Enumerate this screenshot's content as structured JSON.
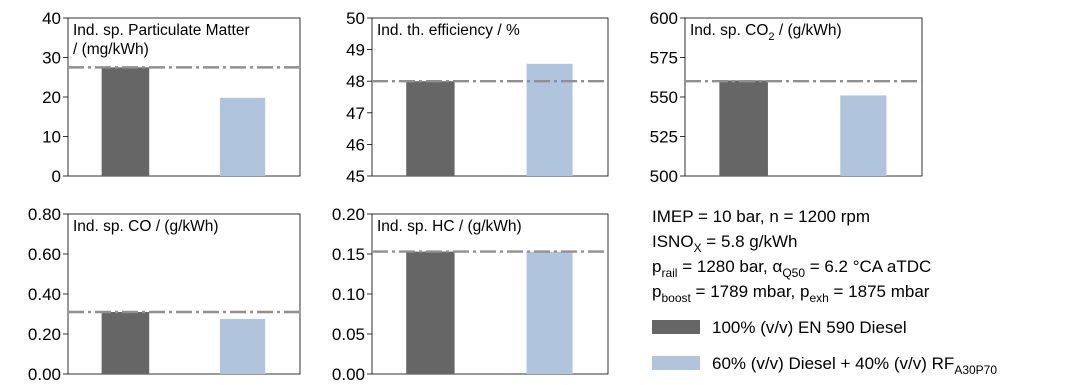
{
  "colors": {
    "diesel": "#666666",
    "blend": "#b0c4de",
    "reference_line": "#909090",
    "axis": "#000000"
  },
  "chart_data": [
    {
      "type": "bar",
      "title": "Ind. sp. Particulate Matter",
      "title_line2": "/ (mg/kWh)",
      "ylim": [
        0,
        40
      ],
      "yticks": [
        "0",
        "10",
        "20",
        "30",
        "40"
      ],
      "series": [
        {
          "ref": "legend.items.0",
          "value": 27.5
        },
        {
          "ref": "legend.items.1",
          "value": 19.8
        }
      ],
      "reference_value": 27.5
    },
    {
      "type": "bar",
      "title": "Ind. th. efficiency / %",
      "ylim": [
        45,
        50
      ],
      "yticks": [
        "45",
        "46",
        "47",
        "48",
        "49",
        "50"
      ],
      "series": [
        {
          "ref": "legend.items.0",
          "value": 48.0
        },
        {
          "ref": "legend.items.1",
          "value": 48.55
        }
      ],
      "reference_value": 48.0
    },
    {
      "type": "bar",
      "title_main": "Ind. sp. CO",
      "title_sub": "2",
      "title_rest": " / (g/kWh)",
      "ylim": [
        500,
        600
      ],
      "yticks": [
        "500",
        "525",
        "550",
        "575",
        "600"
      ],
      "series": [
        {
          "ref": "legend.items.0",
          "value": 560.5
        },
        {
          "ref": "legend.items.1",
          "value": 551.0
        }
      ],
      "reference_value": 560.0
    },
    {
      "type": "bar",
      "title": "Ind. sp. CO / (g/kWh)",
      "ylim": [
        0,
        0.8
      ],
      "yticks": [
        "0.00",
        "0.20",
        "0.40",
        "0.60",
        "0.80"
      ],
      "series": [
        {
          "ref": "legend.items.0",
          "value": 0.31
        },
        {
          "ref": "legend.items.1",
          "value": 0.275
        }
      ],
      "reference_value": 0.31
    },
    {
      "type": "bar",
      "title": "Ind. sp. HC / (g/kWh)",
      "ylim": [
        0,
        0.2
      ],
      "yticks": [
        "0.00",
        "0.05",
        "0.10",
        "0.15",
        "0.20"
      ],
      "series": [
        {
          "ref": "legend.items.0",
          "value": 0.153
        },
        {
          "ref": "legend.items.1",
          "value": 0.153
        }
      ],
      "reference_value": 0.153
    }
  ],
  "conditions": {
    "line1": "IMEP = 10 bar, n = 1200 rpm",
    "line2_main": "ISNO",
    "line2_sub": "X",
    "line2_rest": " = 5.8 g/kWh",
    "line3_p": "p",
    "line3_sub1": "rail",
    "line3_mid": " = 1280 bar, ",
    "line3_alpha": "α",
    "line3_sub2": "Q50",
    "line3_rest": " = 6.2 °CA aTDC",
    "line4_p": "p",
    "line4_sub1": "boost",
    "line4_mid": " = 1789 mbar, p",
    "line4_sub2": "exh",
    "line4_rest": " = 1875 mbar"
  },
  "legend": {
    "items": [
      {
        "label": "100% (v/v) EN 590 Diesel"
      },
      {
        "label_main": "60% (v/v) Diesel + 40% (v/v) RF",
        "label_sub": "A30P70"
      }
    ]
  }
}
